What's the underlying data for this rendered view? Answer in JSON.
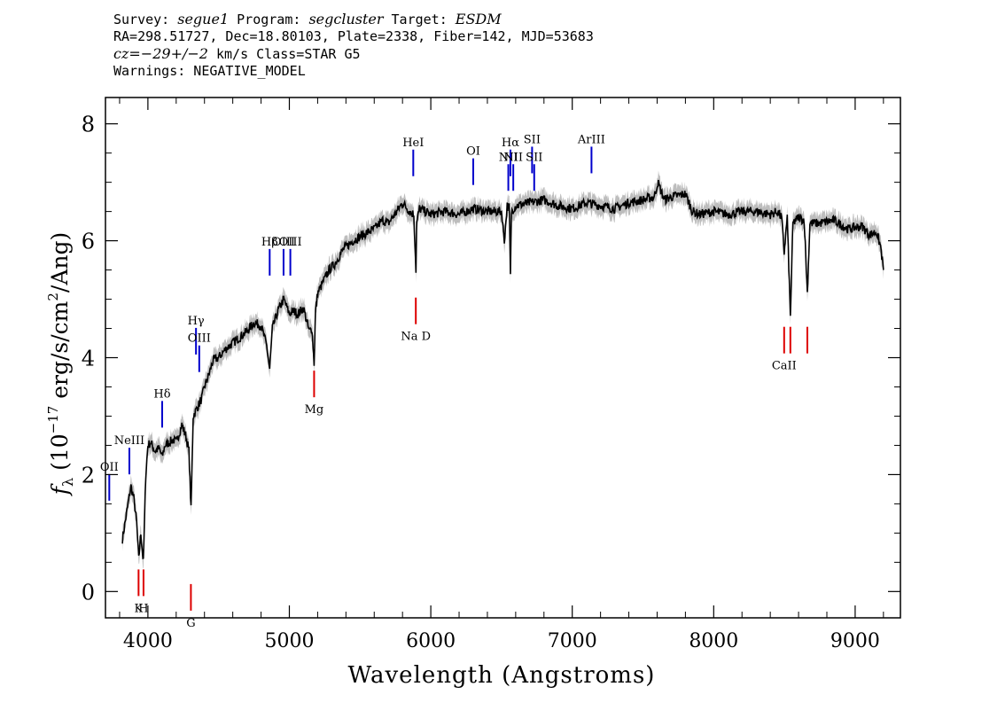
{
  "header": {
    "survey_label": "Survey:",
    "survey": "segue1",
    "program_label": "Program:",
    "program": "segcluster",
    "target_label": "Target:",
    "target": "ESDM",
    "line2": "RA=298.51727, Dec=18.80103, Plate=2338, Fiber=142, MJD=53683",
    "cz_label": "cz=",
    "cz_value": "−29+/−2",
    "cz_rest": " km/s Class=STAR G5",
    "warnings": "Warnings: NEGATIVE_MODEL"
  },
  "chart_data": {
    "type": "line",
    "title": "",
    "xlabel": "Wavelength (Angstroms)",
    "ylabel_prefix": "f",
    "ylabel_sub": "λ",
    "ylabel_mid": " (10",
    "ylabel_exp": "−17",
    "ylabel_units": " erg/s/cm",
    "ylabel_sq": "2",
    "ylabel_end": "/Ang)",
    "xlim": [
      3700,
      9320
    ],
    "ylim": [
      -0.45,
      8.45
    ],
    "xticks": [
      4000,
      5000,
      6000,
      7000,
      8000,
      9000
    ],
    "xtick_labels": [
      "4000",
      "5000",
      "6000",
      "7000",
      "8000",
      "9000"
    ],
    "yticks": [
      0,
      2,
      4,
      6,
      8
    ],
    "ytick_labels": [
      "0",
      "2",
      "4",
      "6",
      "8"
    ],
    "series": [
      {
        "color": "#000000",
        "error_color": "#bdbdbd",
        "x": [
          3820,
          3840,
          3860,
          3880,
          3900,
          3920,
          3935,
          3950,
          3968,
          3985,
          4000,
          4020,
          4050,
          4080,
          4101,
          4120,
          4150,
          4180,
          4200,
          4240,
          4270,
          4290,
          4305,
          4320,
          4340,
          4360,
          4380,
          4400,
          4430,
          4460,
          4500,
          4550,
          4600,
          4650,
          4700,
          4750,
          4800,
          4840,
          4861,
          4880,
          4920,
          4960,
          5000,
          5030,
          5060,
          5100,
          5140,
          5160,
          5175,
          5185,
          5200,
          5240,
          5280,
          5320,
          5380,
          5450,
          5520,
          5600,
          5660,
          5700,
          5760,
          5800,
          5850,
          5880,
          5895,
          5900,
          5920,
          5960,
          6000,
          6100,
          6200,
          6300,
          6400,
          6500,
          6520,
          6540,
          6555,
          6563,
          6570,
          6600,
          6700,
          6800,
          6900,
          7000,
          7100,
          7200,
          7300,
          7400,
          7500,
          7580,
          7605,
          7650,
          7700,
          7800,
          7850,
          7900,
          8000,
          8100,
          8200,
          8300,
          8400,
          8450,
          8480,
          8498,
          8520,
          8542,
          8560,
          8600,
          8640,
          8662,
          8680,
          8750,
          8850,
          8950,
          9050,
          9100,
          9150,
          9180,
          9200
        ],
        "y": [
          0.9,
          1.2,
          1.5,
          1.8,
          1.6,
          1.2,
          0.55,
          1.0,
          0.5,
          2.0,
          2.5,
          2.55,
          2.4,
          2.45,
          2.3,
          2.5,
          2.55,
          2.6,
          2.55,
          2.85,
          2.65,
          2.4,
          1.4,
          3.0,
          3.1,
          3.2,
          3.3,
          3.5,
          3.7,
          3.95,
          4.0,
          4.15,
          4.25,
          4.35,
          4.45,
          4.6,
          4.55,
          4.2,
          3.8,
          4.5,
          4.8,
          5.0,
          4.75,
          4.8,
          4.75,
          4.85,
          4.45,
          4.5,
          3.9,
          4.8,
          5.1,
          5.3,
          5.5,
          5.6,
          5.85,
          6.0,
          6.1,
          6.2,
          6.35,
          6.3,
          6.5,
          6.65,
          6.5,
          6.45,
          5.5,
          6.3,
          6.55,
          6.5,
          6.45,
          6.5,
          6.45,
          6.55,
          6.5,
          6.5,
          6.0,
          6.6,
          6.55,
          5.4,
          6.5,
          6.6,
          6.65,
          6.7,
          6.6,
          6.55,
          6.65,
          6.6,
          6.55,
          6.65,
          6.7,
          6.75,
          7.0,
          6.7,
          6.75,
          6.8,
          6.5,
          6.45,
          6.5,
          6.45,
          6.5,
          6.5,
          6.45,
          6.5,
          6.4,
          5.8,
          6.4,
          4.7,
          6.3,
          6.4,
          6.35,
          5.1,
          6.3,
          6.3,
          6.35,
          6.2,
          6.25,
          6.1,
          6.15,
          5.9,
          5.5
        ]
      }
    ]
  },
  "line_markers": {
    "emission": [
      {
        "label": "OII",
        "x": 3727,
        "label_y": 2.1
      },
      {
        "label": "NeIII",
        "x": 3869,
        "label_y": 2.55
      },
      {
        "label": "Hδ",
        "x": 4101,
        "label_y": 3.35
      },
      {
        "label": "Hγ",
        "x": 4340,
        "label_y": 4.6
      },
      {
        "label": "OIII",
        "x": 4363,
        "label_y": 4.3
      },
      {
        "label": "Hβ",
        "x": 4861,
        "label_y": 5.95
      },
      {
        "label": "OIII",
        "x": 4959,
        "label_y": 5.95
      },
      {
        "label": "OIII",
        "x": 5007,
        "label_y": 5.95
      },
      {
        "label": "HeI",
        "x": 5876,
        "label_y": 7.65
      },
      {
        "label": "OI",
        "x": 6300,
        "label_y": 7.5
      },
      {
        "label": "NII",
        "x": 6548,
        "label_y": 7.4
      },
      {
        "label": "Hα",
        "x": 6563,
        "label_y": 7.65
      },
      {
        "label": "NII",
        "x": 6583,
        "label_y": 7.4
      },
      {
        "label": "SII",
        "x": 6716,
        "label_y": 7.7
      },
      {
        "label": "SII",
        "x": 6731,
        "label_y": 7.4
      },
      {
        "label": "ArIII",
        "x": 7136,
        "label_y": 7.7
      }
    ],
    "absorption": [
      {
        "label": "K",
        "x": 3934,
        "label_y": -0.35
      },
      {
        "label": "H",
        "x": 3969,
        "label_y": -0.35
      },
      {
        "label": "G",
        "x": 4304,
        "label_y": -0.6
      },
      {
        "label": "Mg",
        "x": 5175,
        "label_y": 3.05
      },
      {
        "label": "Na D",
        "x": 5894,
        "label_y": 4.3
      },
      {
        "label": "CaII",
        "x": 8498,
        "label_y": 3.8
      },
      {
        "label": "CaII",
        "x": 8542,
        "label_y": 3.8
      },
      {
        "label": "CaII",
        "x": 8662,
        "label_y": 3.8
      }
    ],
    "emission_color": "#0000cc",
    "absorption_color": "#dd0000"
  }
}
